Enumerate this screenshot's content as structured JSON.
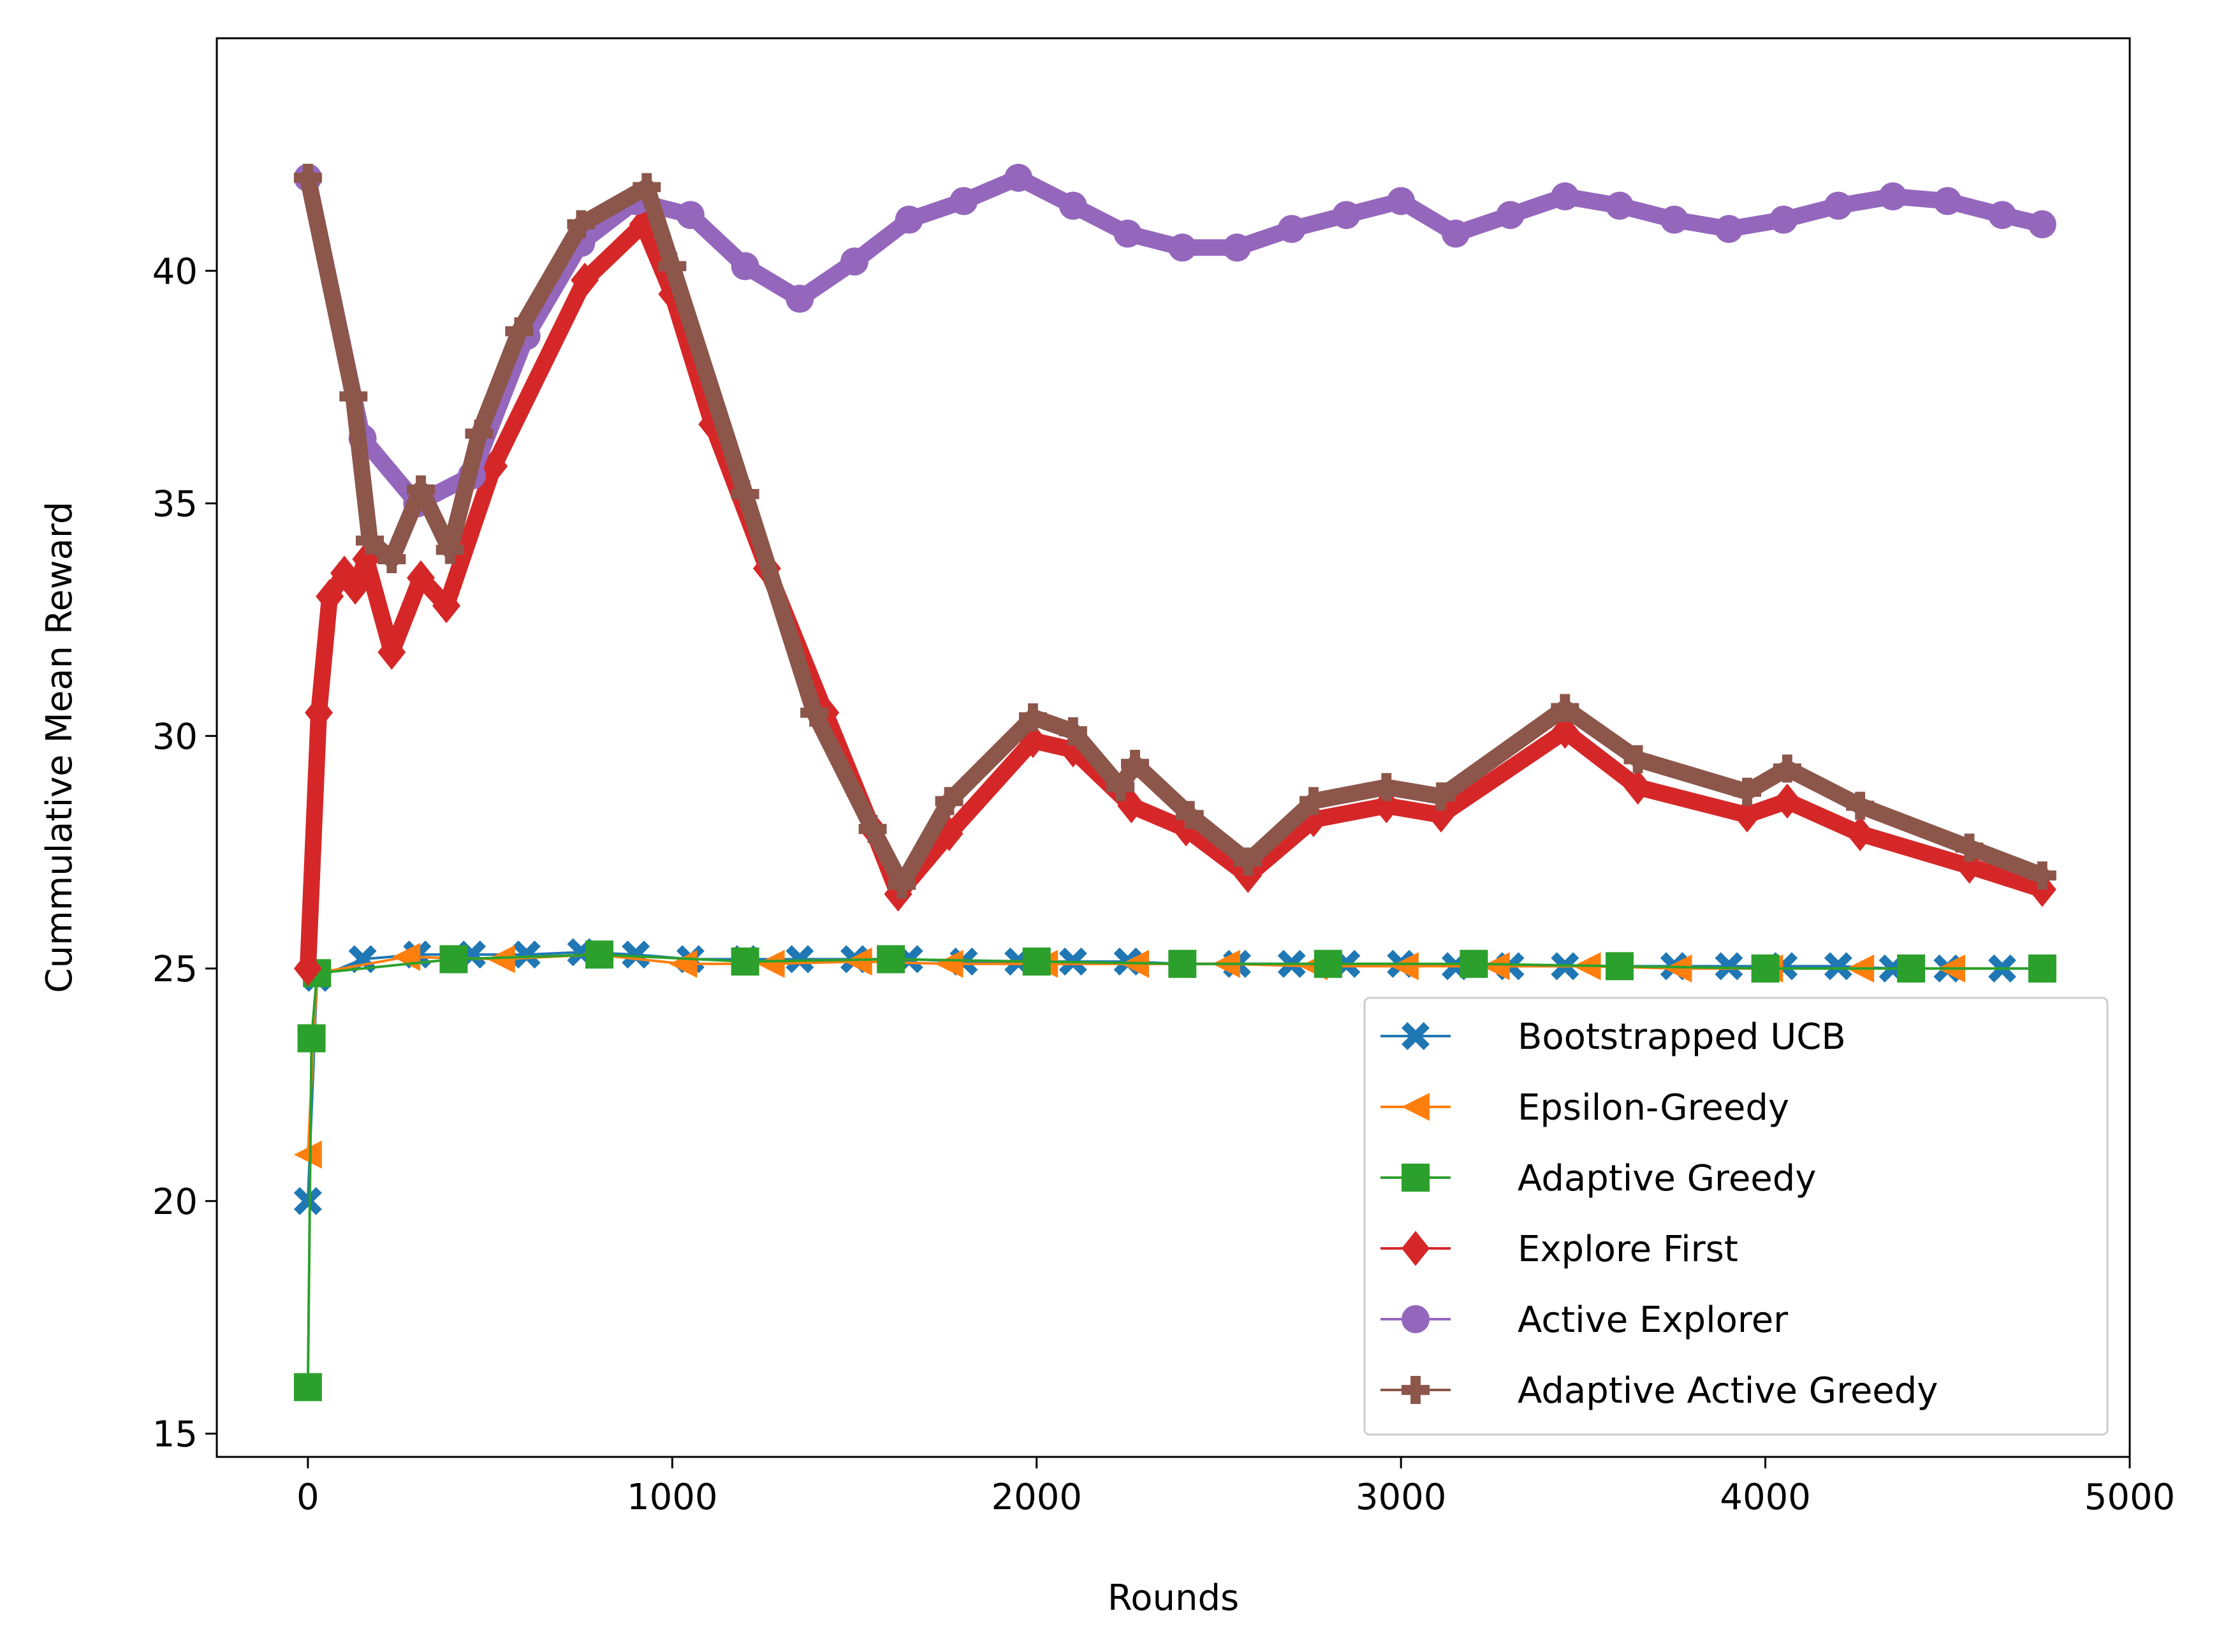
{
  "chart_data": {
    "type": "line",
    "title": "",
    "xlabel": "Rounds",
    "ylabel": "Cummulative Mean Reward",
    "xlim": [
      -250,
      5000
    ],
    "ylim": [
      14.5,
      45
    ],
    "xticks": [
      0,
      1000,
      2000,
      3000,
      4000,
      5000
    ],
    "xtick_labels": [
      "0",
      "1000",
      "2000",
      "3000",
      "4000",
      "5000"
    ],
    "yticks": [
      15,
      20,
      25,
      30,
      35,
      40
    ],
    "ytick_labels": [
      "15",
      "20",
      "25",
      "30",
      "35",
      "40"
    ],
    "grid": false,
    "legend_position": "lower-right",
    "series": [
      {
        "name": "Bootstrapped UCB",
        "color": "#1f77b4",
        "marker": "X",
        "x": [
          0,
          25,
          150,
          300,
          450,
          600,
          750,
          900,
          1050,
          1200,
          1350,
          1500,
          1650,
          1800,
          1950,
          2100,
          2250,
          2400,
          2550,
          2700,
          2850,
          3000,
          3150,
          3300,
          3450,
          3600,
          3750,
          3900,
          4050,
          4200,
          4350,
          4500,
          4650,
          4760
        ],
        "y": [
          20,
          24.8,
          25.2,
          25.3,
          25.3,
          25.3,
          25.35,
          25.3,
          25.2,
          25.2,
          25.2,
          25.2,
          25.2,
          25.15,
          25.15,
          25.15,
          25.15,
          25.1,
          25.1,
          25.1,
          25.1,
          25.1,
          25.05,
          25.05,
          25.05,
          25.05,
          25.05,
          25.05,
          25.05,
          25.05,
          25.0,
          25.0,
          25.0,
          25.0
        ]
      },
      {
        "name": "Epsilon-Greedy",
        "color": "#ff7f0e",
        "marker": "<",
        "x": [
          0,
          25,
          270,
          530,
          790,
          1030,
          1270,
          1510,
          1760,
          2020,
          2270,
          2520,
          2760,
          3010,
          3260,
          3510,
          3760,
          4010,
          4260,
          4510,
          4760
        ],
        "y": [
          21,
          24.9,
          25.25,
          25.2,
          25.3,
          25.1,
          25.1,
          25.15,
          25.1,
          25.1,
          25.1,
          25.1,
          25.05,
          25.05,
          25.05,
          25.05,
          25.0,
          25.0,
          25.0,
          25.0,
          25.0
        ]
      },
      {
        "name": "Adaptive Greedy",
        "color": "#2ca02c",
        "marker": "s",
        "x": [
          0,
          10,
          25,
          400,
          800,
          1200,
          1600,
          2000,
          2400,
          2800,
          3200,
          3600,
          4000,
          4400,
          4760
        ],
        "y": [
          16,
          23.5,
          24.9,
          25.2,
          25.3,
          25.15,
          25.2,
          25.15,
          25.1,
          25.1,
          25.1,
          25.05,
          25.0,
          25.0,
          25.0
        ]
      },
      {
        "name": "Explore First",
        "color": "#d62728",
        "marker": "D",
        "x": [
          0,
          30,
          60,
          100,
          130,
          160,
          230,
          310,
          380,
          510,
          760,
          920,
          1000,
          1110,
          1260,
          1420,
          1550,
          1620,
          1760,
          1990,
          2100,
          2260,
          2410,
          2580,
          2760,
          2960,
          3110,
          3450,
          3650,
          3950,
          4060,
          4260,
          4560,
          4760
        ],
        "y": [
          25,
          30.5,
          33.0,
          33.5,
          33.2,
          33.8,
          31.8,
          33.4,
          32.8,
          35.8,
          39.8,
          41.0,
          39.5,
          36.7,
          33.6,
          30.5,
          28.0,
          26.6,
          27.9,
          29.9,
          29.7,
          28.5,
          28.0,
          27.0,
          28.2,
          28.5,
          28.3,
          30.1,
          28.9,
          28.3,
          28.6,
          27.9,
          27.2,
          26.7
        ]
      },
      {
        "name": "Active Explorer",
        "color": "#9467bd",
        "marker": "o",
        "x": [
          0,
          150,
          300,
          450,
          600,
          750,
          900,
          1050,
          1200,
          1350,
          1500,
          1650,
          1800,
          1950,
          2100,
          2250,
          2400,
          2550,
          2700,
          2850,
          3000,
          3150,
          3300,
          3450,
          3600,
          3750,
          3900,
          4050,
          4200,
          4350,
          4500,
          4650,
          4760
        ],
        "y": [
          42,
          36.4,
          35.0,
          35.6,
          38.6,
          40.6,
          41.5,
          41.2,
          40.1,
          39.4,
          40.2,
          41.1,
          41.5,
          42.0,
          41.4,
          40.8,
          40.5,
          40.5,
          40.9,
          41.2,
          41.5,
          40.8,
          41.2,
          41.6,
          41.4,
          41.1,
          40.9,
          41.1,
          41.4,
          41.6,
          41.5,
          41.2,
          41.0
        ]
      },
      {
        "name": "Adaptive Active Greedy",
        "color": "#8c564b",
        "marker": "P",
        "x": [
          0,
          125,
          170,
          230,
          310,
          390,
          470,
          580,
          750,
          930,
          1000,
          1200,
          1390,
          1550,
          1630,
          1760,
          1990,
          2100,
          2230,
          2270,
          2420,
          2580,
          2760,
          2960,
          3110,
          3450,
          3650,
          3950,
          4060,
          4260,
          4560,
          4760
        ],
        "y": [
          42,
          37.3,
          34.2,
          33.8,
          35.3,
          34.0,
          36.5,
          38.7,
          41.0,
          41.8,
          40.1,
          35.2,
          30.5,
          28.0,
          26.8,
          28.6,
          30.4,
          30.1,
          28.9,
          29.4,
          28.3,
          27.3,
          28.6,
          28.9,
          28.7,
          30.6,
          29.5,
          28.8,
          29.3,
          28.5,
          27.6,
          27.0
        ]
      }
    ]
  }
}
